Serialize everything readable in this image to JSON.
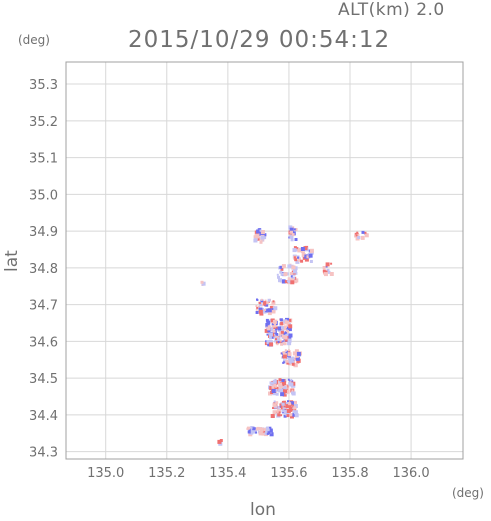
{
  "header": {
    "alt_label": "ALT(km) 2.0",
    "timestamp": "2015/10/29 00:54:12"
  },
  "axes": {
    "y_unit": "(deg)",
    "x_unit": "(deg)",
    "y_label": "lat",
    "x_label": "lon"
  },
  "chart_data": {
    "type": "scatter",
    "xlim": [
      134.87,
      136.17
    ],
    "ylim": [
      34.28,
      35.36
    ],
    "x_ticks": [
      "135.0",
      "135.2",
      "135.4",
      "135.6",
      "135.8",
      "136.0"
    ],
    "y_ticks": [
      "34.3",
      "34.4",
      "34.5",
      "34.6",
      "34.7",
      "34.8",
      "34.9",
      "35.0",
      "35.1",
      "35.2",
      "35.3"
    ],
    "grid": true,
    "colors": {
      "positive": "#f07070",
      "negative": "#6f6ff0",
      "weak_positive": "#f6c3c3",
      "weak_negative": "#c4c4f4"
    },
    "clusters": [
      {
        "lon": 135.5,
        "lat": 34.89,
        "w": 0.04,
        "h": 0.04,
        "n": 35,
        "bias": 0.0
      },
      {
        "lon": 135.61,
        "lat": 34.9,
        "w": 0.03,
        "h": 0.04,
        "n": 15,
        "bias": -0.3
      },
      {
        "lon": 135.64,
        "lat": 34.84,
        "w": 0.06,
        "h": 0.04,
        "n": 45,
        "bias": 0.2
      },
      {
        "lon": 135.59,
        "lat": 34.79,
        "w": 0.06,
        "h": 0.05,
        "n": 45,
        "bias": 0.2
      },
      {
        "lon": 135.72,
        "lat": 34.8,
        "w": 0.03,
        "h": 0.03,
        "n": 10,
        "bias": 0.3
      },
      {
        "lon": 135.83,
        "lat": 34.89,
        "w": 0.04,
        "h": 0.03,
        "n": 14,
        "bias": 0.4
      },
      {
        "lon": 135.31,
        "lat": 34.76,
        "w": 0.01,
        "h": 0.01,
        "n": 3,
        "bias": -0.6
      },
      {
        "lon": 135.52,
        "lat": 34.7,
        "w": 0.06,
        "h": 0.04,
        "n": 45,
        "bias": 0.3
      },
      {
        "lon": 135.56,
        "lat": 34.63,
        "w": 0.08,
        "h": 0.07,
        "n": 140,
        "bias": -0.1
      },
      {
        "lon": 135.6,
        "lat": 34.56,
        "w": 0.06,
        "h": 0.04,
        "n": 60,
        "bias": 0.0
      },
      {
        "lon": 135.57,
        "lat": 34.48,
        "w": 0.08,
        "h": 0.04,
        "n": 80,
        "bias": 0.5
      },
      {
        "lon": 135.58,
        "lat": 34.42,
        "w": 0.08,
        "h": 0.04,
        "n": 90,
        "bias": 0.5
      },
      {
        "lon": 135.5,
        "lat": 34.36,
        "w": 0.08,
        "h": 0.02,
        "n": 60,
        "bias": -0.4
      },
      {
        "lon": 135.37,
        "lat": 34.33,
        "w": 0.01,
        "h": 0.01,
        "n": 3,
        "bias": 0.7
      }
    ]
  }
}
